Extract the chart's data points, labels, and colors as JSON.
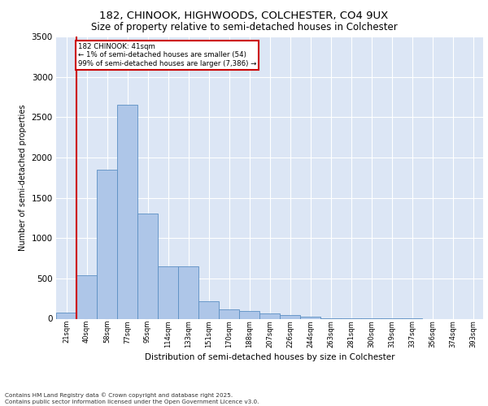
{
  "title_line1": "182, CHINOOK, HIGHWOODS, COLCHESTER, CO4 9UX",
  "title_line2": "Size of property relative to semi-detached houses in Colchester",
  "xlabel": "Distribution of semi-detached houses by size in Colchester",
  "ylabel": "Number of semi-detached properties",
  "footnote": "Contains HM Land Registry data © Crown copyright and database right 2025.\nContains public sector information licensed under the Open Government Licence v3.0.",
  "bin_labels": [
    "21sqm",
    "40sqm",
    "58sqm",
    "77sqm",
    "95sqm",
    "114sqm",
    "133sqm",
    "151sqm",
    "170sqm",
    "188sqm",
    "207sqm",
    "226sqm",
    "244sqm",
    "263sqm",
    "281sqm",
    "300sqm",
    "319sqm",
    "337sqm",
    "356sqm",
    "374sqm",
    "393sqm"
  ],
  "bar_values": [
    80,
    540,
    1850,
    2650,
    1300,
    650,
    650,
    220,
    120,
    100,
    70,
    50,
    30,
    10,
    5,
    2,
    1,
    1,
    0,
    0,
    0
  ],
  "bar_color": "#aec6e8",
  "bar_edge_color": "#5b8fc3",
  "highlight_index": 1,
  "highlight_color": "#cc0000",
  "annotation_title": "182 CHINOOK: 41sqm",
  "annotation_line1": "← 1% of semi-detached houses are smaller (54)",
  "annotation_line2": "99% of semi-detached houses are larger (7,386) →",
  "annotation_box_color": "#cc0000",
  "ylim": [
    0,
    3500
  ],
  "yticks": [
    0,
    500,
    1000,
    1500,
    2000,
    2500,
    3000,
    3500
  ],
  "background_color": "#dce6f5",
  "grid_color": "#ffffff",
  "fig_background": "#ffffff"
}
